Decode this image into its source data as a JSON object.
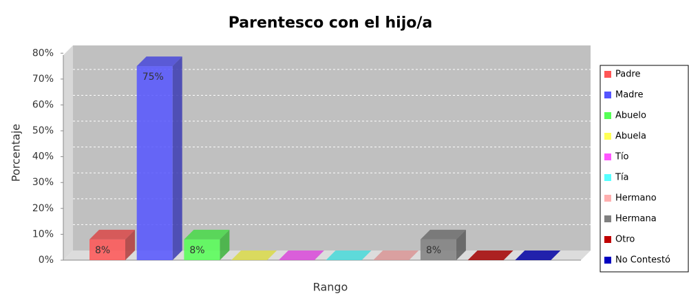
{
  "chart_data": {
    "type": "bar3d",
    "title": "Parentesco con el hijo/a",
    "xlabel": "Rango",
    "ylabel": "Porcentaje",
    "ylim": [
      0,
      83
    ],
    "yticks": [
      {
        "value": 0,
        "label": "0%"
      },
      {
        "value": 10,
        "label": "10%"
      },
      {
        "value": 20,
        "label": "20%"
      },
      {
        "value": 30,
        "label": "30%"
      },
      {
        "value": 40,
        "label": "40%"
      },
      {
        "value": 50,
        "label": "50%"
      },
      {
        "value": 60,
        "label": "60%"
      },
      {
        "value": 70,
        "label": "70%"
      },
      {
        "value": 80,
        "label": "80%"
      }
    ],
    "grid": true,
    "legend": "right",
    "series": [
      {
        "name": "Padre",
        "color": "#ff5555",
        "values": [
          8
        ],
        "value_labels": [
          "8%"
        ]
      },
      {
        "name": "Madre",
        "color": "#5555ff",
        "values": [
          75
        ],
        "value_labels": [
          "75%"
        ]
      },
      {
        "name": "Abuelo",
        "color": "#55ff55",
        "values": [
          8
        ],
        "value_labels": [
          "8%"
        ]
      },
      {
        "name": "Abuela",
        "color": "#ffff55",
        "values": [
          0
        ],
        "value_labels": [
          null
        ]
      },
      {
        "name": "Tío",
        "color": "#ff55ff",
        "values": [
          0
        ],
        "value_labels": [
          null
        ]
      },
      {
        "name": "Tía",
        "color": "#55ffff",
        "values": [
          0
        ],
        "value_labels": [
          null
        ]
      },
      {
        "name": "Hermano",
        "color": "#ffafaf",
        "values": [
          0
        ],
        "value_labels": [
          null
        ]
      },
      {
        "name": "Hermana",
        "color": "#808080",
        "values": [
          8
        ],
        "value_labels": [
          "8%"
        ]
      },
      {
        "name": "Otro",
        "color": "#c00000",
        "values": [
          0
        ],
        "value_labels": [
          null
        ]
      },
      {
        "name": "No Contestó",
        "color": "#0000c0",
        "values": [
          0
        ],
        "value_labels": [
          null
        ]
      }
    ]
  }
}
